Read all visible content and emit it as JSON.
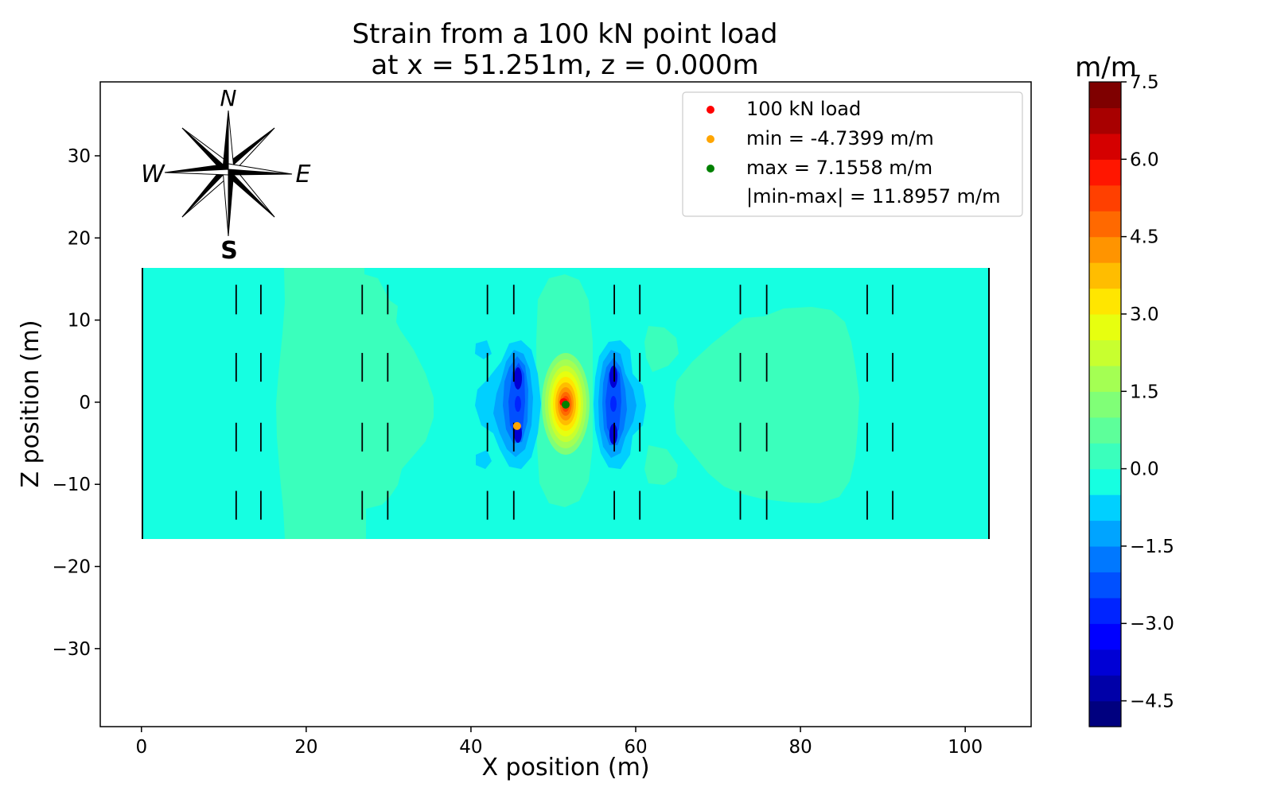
{
  "chart_data": {
    "type": "heatmap",
    "title_line1": "Strain from a 100 kN point load",
    "title_line2": "at x = 51.251m, z = 0.000m",
    "xlabel": "X position (m)",
    "ylabel": "Z position (m)",
    "xlim": [
      -5,
      108
    ],
    "ylim": [
      -39.5,
      39
    ],
    "x_ticks": [
      0,
      20,
      40,
      60,
      80,
      100
    ],
    "y_ticks": [
      -30,
      -20,
      -10,
      0,
      10,
      20,
      30
    ],
    "y_tick_labels": [
      "−30",
      "−20",
      "−10",
      "0",
      "10",
      "20",
      "30"
    ],
    "grid": false,
    "deck": {
      "x_range": [
        0,
        103
      ],
      "z_range": [
        -16.5,
        16.5
      ]
    },
    "girder_lines": {
      "x": [
        11.5,
        14.5,
        26.8,
        29.9,
        42.0,
        45.2,
        57.4,
        60.5,
        72.7,
        75.9,
        88.1,
        91.2
      ],
      "z_segments": [
        [
          10.7,
          14.3
        ],
        [
          2.5,
          6.0
        ],
        [
          -6.0,
          -2.5
        ],
        [
          -14.3,
          -10.8
        ]
      ]
    },
    "load_point": {
      "x": 51.251,
      "z": 0.0,
      "color": "#ff0000"
    },
    "min_point": {
      "x": 45.6,
      "z": -2.9,
      "value": -4.7399,
      "color": "#ffa500"
    },
    "max_point": {
      "x": 51.5,
      "z": -0.3,
      "value": 7.1558,
      "color": "#008000"
    },
    "legend": {
      "position": "upper right",
      "entries": [
        {
          "label": "100 kN load",
          "color": "#ff0000"
        },
        {
          "label": "min = -4.7399 m/m",
          "color": "#ffa500"
        },
        {
          "label": "max = 7.1558 m/m",
          "color": "#008000"
        },
        {
          "label": "|min-max| = 11.8957 m/m",
          "color": ""
        }
      ]
    },
    "colorbar": {
      "label": "m/m",
      "vmin": -5.0,
      "vmax": 7.5,
      "ticks": [
        -4.5,
        -3.0,
        -1.5,
        0.0,
        1.5,
        3.0,
        4.5,
        6.0,
        7.5
      ],
      "tick_labels": [
        "−4.5",
        "−3.0",
        "−1.5",
        "0.0",
        "1.5",
        "3.0",
        "4.5",
        "6.0",
        "7.5"
      ],
      "colors": [
        "#00007f",
        "#0000a8",
        "#0000d5",
        "#0000ff",
        "#0024ff",
        "#0050ff",
        "#0078ff",
        "#00a4ff",
        "#00d0ff",
        "#16ffe1",
        "#3affbc",
        "#5dff9a",
        "#80ff77",
        "#a4ff53",
        "#c8ff2f",
        "#e7ff0f",
        "#ffe600",
        "#ffbd00",
        "#ff9400",
        "#ff6900",
        "#ff4000",
        "#ff1600",
        "#d50000",
        "#a80000",
        "#7f0000"
      ]
    },
    "compass": {
      "n": "N",
      "s": "S",
      "e": "E",
      "w": "W"
    }
  }
}
